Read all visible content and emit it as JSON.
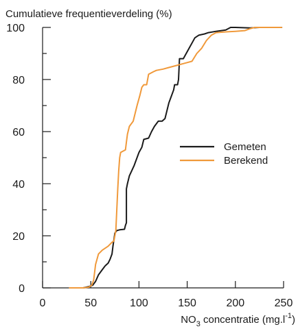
{
  "chart_data": {
    "type": "line",
    "ylabel": "Cumulatieve frequentieverdeling (%)",
    "xlabel": {
      "main": "NO",
      "sub": "3",
      "rest": " concentratie (mg.l",
      "sup": "-1",
      "close": ")"
    },
    "xlim": [
      0,
      250
    ],
    "ylim": [
      0,
      100
    ],
    "x_ticks": [
      0,
      50,
      100,
      150,
      200,
      250
    ],
    "y_ticks": [
      0,
      20,
      40,
      60,
      80,
      100
    ],
    "grid": false,
    "legend_position": "center-right",
    "series": [
      {
        "name": "Gemeten",
        "color": "#1a1a1a",
        "points": [
          [
            42,
            0
          ],
          [
            48,
            0.5
          ],
          [
            52,
            1
          ],
          [
            55,
            2.5
          ],
          [
            58,
            5
          ],
          [
            62,
            7
          ],
          [
            65,
            8.5
          ],
          [
            68,
            9.5
          ],
          [
            70,
            11
          ],
          [
            72,
            13
          ],
          [
            73,
            16
          ],
          [
            75,
            21
          ],
          [
            77,
            22
          ],
          [
            80,
            22.3
          ],
          [
            85,
            22.5
          ],
          [
            86,
            24
          ],
          [
            87,
            25
          ],
          [
            87,
            38
          ],
          [
            88,
            40
          ],
          [
            90,
            43
          ],
          [
            95,
            47
          ],
          [
            100,
            52
          ],
          [
            103,
            54
          ],
          [
            105,
            57
          ],
          [
            110,
            57.5
          ],
          [
            113,
            60
          ],
          [
            116,
            62
          ],
          [
            118,
            63
          ],
          [
            120,
            64
          ],
          [
            124,
            64
          ],
          [
            127,
            65
          ],
          [
            129,
            68
          ],
          [
            131,
            71
          ],
          [
            133,
            73
          ],
          [
            136,
            76
          ],
          [
            137,
            78
          ],
          [
            140,
            78
          ],
          [
            141,
            80
          ],
          [
            142,
            88
          ],
          [
            146,
            88
          ],
          [
            149,
            90
          ],
          [
            152,
            92
          ],
          [
            155,
            94
          ],
          [
            158,
            96
          ],
          [
            162,
            97
          ],
          [
            168,
            97.5
          ],
          [
            172,
            98
          ],
          [
            180,
            98.5
          ],
          [
            190,
            99
          ],
          [
            195,
            100
          ],
          [
            200,
            100
          ],
          [
            215,
            99.8
          ],
          [
            225,
            100
          ],
          [
            248,
            100
          ]
        ]
      },
      {
        "name": "Berekend",
        "color": "#f0993a",
        "points": [
          [
            28,
            0
          ],
          [
            42,
            0
          ],
          [
            48,
            0.3
          ],
          [
            51,
            1
          ],
          [
            53,
            3
          ],
          [
            55,
            9
          ],
          [
            58,
            13
          ],
          [
            62,
            14.5
          ],
          [
            68,
            16
          ],
          [
            72,
            17.5
          ],
          [
            74,
            18
          ],
          [
            75,
            20
          ],
          [
            76,
            22
          ],
          [
            77,
            30
          ],
          [
            78,
            38
          ],
          [
            79,
            45
          ],
          [
            80,
            50
          ],
          [
            81,
            52
          ],
          [
            86,
            53
          ],
          [
            87,
            56
          ],
          [
            88,
            59
          ],
          [
            90,
            62
          ],
          [
            94,
            64
          ],
          [
            96,
            67
          ],
          [
            98,
            70
          ],
          [
            101,
            74
          ],
          [
            103,
            77
          ],
          [
            105,
            78
          ],
          [
            108,
            78
          ],
          [
            110,
            82
          ],
          [
            115,
            83
          ],
          [
            118,
            83.5
          ],
          [
            125,
            84
          ],
          [
            130,
            84.5
          ],
          [
            135,
            85
          ],
          [
            140,
            85.5
          ],
          [
            145,
            86
          ],
          [
            150,
            86.5
          ],
          [
            155,
            87
          ],
          [
            160,
            90
          ],
          [
            165,
            92
          ],
          [
            170,
            95
          ],
          [
            175,
            97
          ],
          [
            180,
            98
          ],
          [
            190,
            98.3
          ],
          [
            200,
            98.5
          ],
          [
            210,
            98.8
          ],
          [
            215,
            99.5
          ],
          [
            220,
            100
          ],
          [
            248,
            100
          ]
        ]
      }
    ]
  }
}
